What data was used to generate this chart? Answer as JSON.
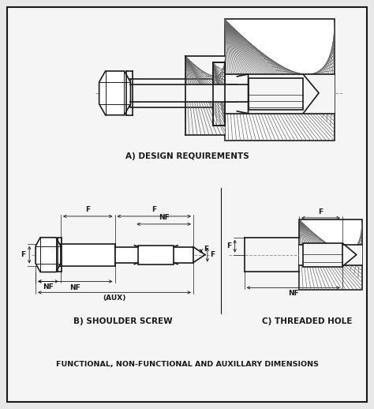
{
  "bg_color": "#e8e8e8",
  "inner_bg": "#f0f0f0",
  "line_color": "#1a1a1a",
  "hatch_color": "#555555",
  "dashed_color": "#888888",
  "title_A": "A) DESIGN REQUIREMENTS",
  "title_B": "B) SHOULDER SCREW",
  "title_C": "C) THREADED HOLE",
  "subtitle": "FUNCTIONAL, NON-FUNCTIONAL AND AUXILLARY DIMENSIONS",
  "label_F": "F",
  "label_NF": "NF",
  "label_AUX": "(AUX)"
}
